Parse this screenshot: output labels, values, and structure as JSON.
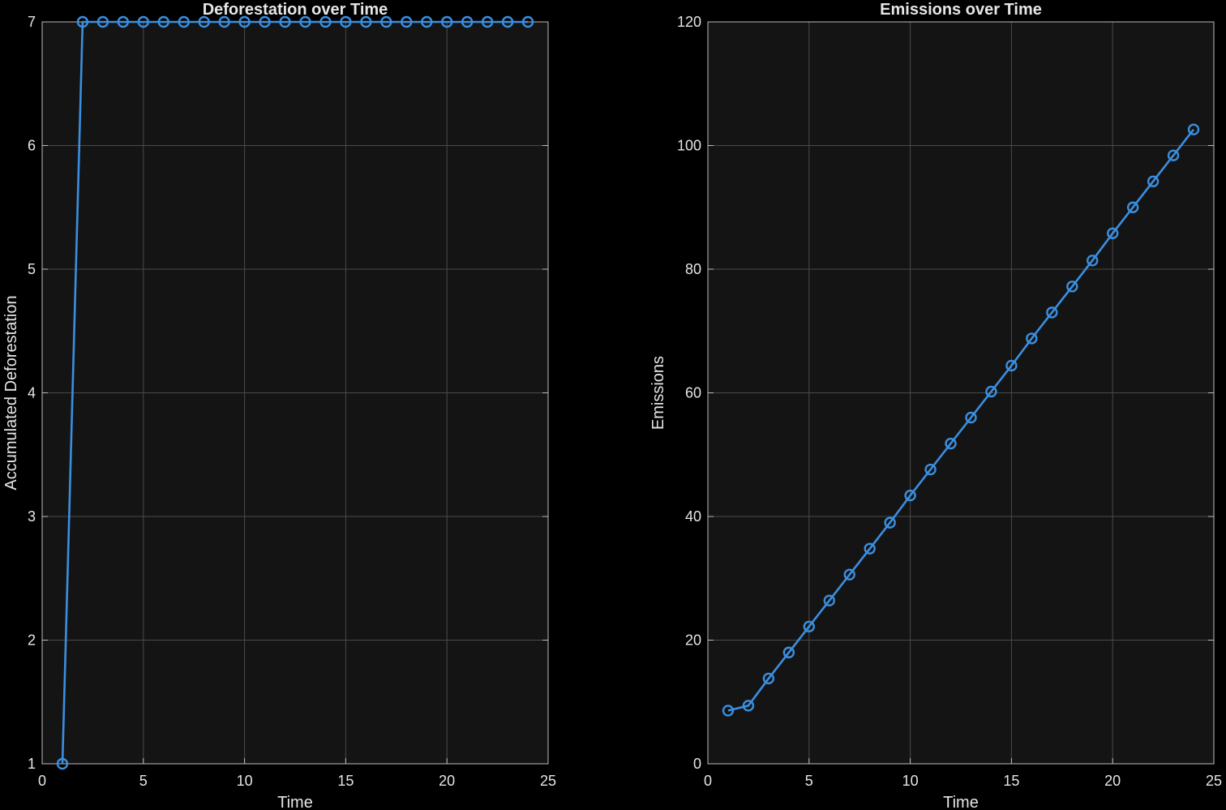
{
  "colors": {
    "background": "#000000",
    "axes_face": "#141414",
    "grid": "#4a4a4a",
    "axis_line": "#bdbdbd",
    "text": "#e6e6e6",
    "series": "#3a8fe0"
  },
  "chart_data": [
    {
      "type": "line",
      "marker": "circle",
      "title": "Deforestation over Time",
      "xlabel": "Time",
      "ylabel": "Accumulated Deforestation",
      "xlim": [
        0,
        25
      ],
      "ylim": [
        1,
        7
      ],
      "xticks": [
        0,
        5,
        10,
        15,
        20,
        25
      ],
      "yticks": [
        1,
        2,
        3,
        4,
        5,
        6,
        7
      ],
      "grid": true,
      "x": [
        1,
        2,
        3,
        4,
        5,
        6,
        7,
        8,
        9,
        10,
        11,
        12,
        13,
        14,
        15,
        16,
        17,
        18,
        19,
        20,
        21,
        22,
        23,
        24
      ],
      "y": [
        1,
        7,
        7,
        7,
        7,
        7,
        7,
        7,
        7,
        7,
        7,
        7,
        7,
        7,
        7,
        7,
        7,
        7,
        7,
        7,
        7,
        7,
        7,
        7
      ]
    },
    {
      "type": "line",
      "marker": "circle",
      "title": "Emissions over Time",
      "xlabel": "Time",
      "ylabel": "Emissions",
      "xlim": [
        0,
        25
      ],
      "ylim": [
        0,
        120
      ],
      "xticks": [
        0,
        5,
        10,
        15,
        20,
        25
      ],
      "yticks": [
        0,
        20,
        40,
        60,
        80,
        100,
        120
      ],
      "grid": true,
      "x": [
        1,
        2,
        3,
        4,
        5,
        6,
        7,
        8,
        9,
        10,
        11,
        12,
        13,
        14,
        15,
        16,
        17,
        18,
        19,
        20,
        21,
        22,
        23,
        24
      ],
      "y": [
        8.6,
        9.4,
        13.8,
        18.0,
        22.2,
        26.4,
        30.6,
        34.8,
        39.0,
        43.4,
        47.6,
        51.8,
        56.0,
        60.2,
        64.4,
        68.8,
        73.0,
        77.2,
        81.4,
        85.8,
        90.0,
        94.2,
        98.4,
        102.6
      ]
    }
  ]
}
